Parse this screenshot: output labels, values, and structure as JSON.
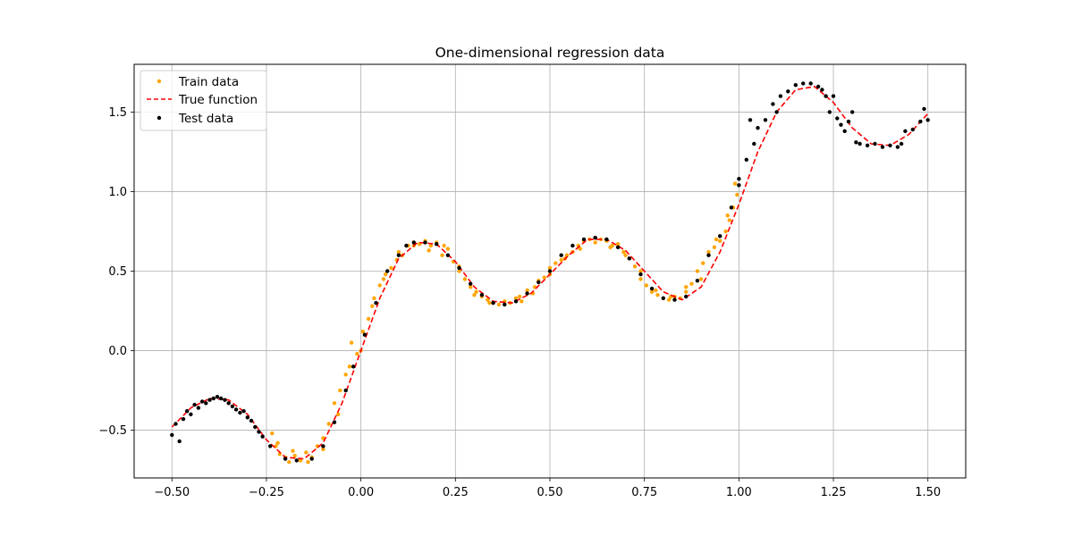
{
  "chart_data": {
    "type": "scatter",
    "title": "One-dimensional regression data",
    "xlabel": "",
    "ylabel": "",
    "xlim": [
      -0.6,
      1.6
    ],
    "ylim": [
      -0.8,
      1.8
    ],
    "x_ticks": [
      -0.5,
      -0.25,
      0.0,
      0.25,
      0.5,
      0.75,
      1.0,
      1.25,
      1.5
    ],
    "x_tick_labels": [
      "−0.50",
      "−0.25",
      "0.00",
      "0.25",
      "0.50",
      "0.75",
      "1.00",
      "1.25",
      "1.50"
    ],
    "y_ticks": [
      -0.5,
      0.0,
      0.5,
      1.0,
      1.5
    ],
    "y_tick_labels": [
      "−0.5",
      "0.0",
      "0.5",
      "1.0",
      "1.5"
    ],
    "grid": true,
    "legend_position": "top-left",
    "series": [
      {
        "name": "Train data",
        "kind": "scatter",
        "color": "#ffa500",
        "points": [
          [
            -0.235,
            -0.52
          ],
          [
            -0.225,
            -0.6
          ],
          [
            -0.215,
            -0.65
          ],
          [
            -0.2,
            -0.67
          ],
          [
            -0.19,
            -0.7
          ],
          [
            -0.175,
            -0.66
          ],
          [
            -0.16,
            -0.69
          ],
          [
            -0.145,
            -0.64
          ],
          [
            -0.13,
            -0.67
          ],
          [
            -0.115,
            -0.6
          ],
          [
            -0.1,
            -0.55
          ],
          [
            -0.085,
            -0.46
          ],
          [
            -0.07,
            -0.33
          ],
          [
            -0.055,
            -0.25
          ],
          [
            -0.04,
            -0.15
          ],
          [
            -0.025,
            0.05
          ],
          [
            -0.01,
            -0.02
          ],
          [
            0.005,
            0.12
          ],
          [
            0.02,
            0.2
          ],
          [
            0.035,
            0.33
          ],
          [
            0.05,
            0.41
          ],
          [
            0.065,
            0.48
          ],
          [
            0.08,
            0.52
          ],
          [
            0.095,
            0.57
          ],
          [
            0.11,
            0.6
          ],
          [
            0.125,
            0.66
          ],
          [
            0.14,
            0.68
          ],
          [
            0.155,
            0.67
          ],
          [
            0.17,
            0.69
          ],
          [
            0.185,
            0.66
          ],
          [
            0.2,
            0.68
          ],
          [
            0.215,
            0.6
          ],
          [
            0.23,
            0.64
          ],
          [
            0.245,
            0.56
          ],
          [
            0.26,
            0.53
          ],
          [
            0.275,
            0.45
          ],
          [
            0.29,
            0.4
          ],
          [
            0.305,
            0.37
          ],
          [
            0.32,
            0.34
          ],
          [
            0.335,
            0.32
          ],
          [
            0.35,
            0.3
          ],
          [
            0.365,
            0.29
          ],
          [
            0.38,
            0.31
          ],
          [
            0.395,
            0.3
          ],
          [
            0.41,
            0.33
          ],
          [
            0.425,
            0.31
          ],
          [
            0.44,
            0.38
          ],
          [
            0.455,
            0.36
          ],
          [
            0.47,
            0.44
          ],
          [
            0.485,
            0.46
          ],
          [
            0.5,
            0.48
          ],
          [
            0.515,
            0.55
          ],
          [
            0.53,
            0.57
          ],
          [
            0.545,
            0.6
          ],
          [
            0.56,
            0.62
          ],
          [
            0.575,
            0.66
          ],
          [
            0.59,
            0.69
          ],
          [
            0.605,
            0.7
          ],
          [
            0.62,
            0.71
          ],
          [
            0.635,
            0.7
          ],
          [
            0.65,
            0.69
          ],
          [
            0.665,
            0.66
          ],
          [
            0.68,
            0.67
          ],
          [
            0.695,
            0.62
          ],
          [
            0.71,
            0.58
          ],
          [
            0.725,
            0.53
          ],
          [
            0.74,
            0.45
          ],
          [
            0.755,
            0.41
          ],
          [
            0.77,
            0.37
          ],
          [
            0.785,
            0.35
          ],
          [
            0.8,
            0.33
          ],
          [
            0.815,
            0.32
          ],
          [
            0.83,
            0.34
          ],
          [
            0.845,
            0.33
          ],
          [
            0.86,
            0.37
          ],
          [
            0.875,
            0.42
          ],
          [
            0.89,
            0.5
          ],
          [
            0.905,
            0.55
          ],
          [
            0.92,
            0.62
          ],
          [
            0.935,
            0.65
          ],
          [
            0.95,
            0.69
          ],
          [
            0.965,
            0.75
          ],
          [
            0.975,
            0.82
          ],
          [
            0.985,
            0.9
          ],
          [
            0.995,
            0.98
          ],
          [
            -0.22,
            -0.58
          ],
          [
            -0.18,
            -0.63
          ],
          [
            -0.14,
            -0.7
          ],
          [
            -0.1,
            -0.62
          ],
          [
            -0.06,
            -0.4
          ],
          [
            -0.03,
            -0.1
          ],
          [
            0.0,
            0.0
          ],
          [
            0.03,
            0.28
          ],
          [
            0.06,
            0.45
          ],
          [
            0.1,
            0.62
          ],
          [
            0.14,
            0.66
          ],
          [
            0.18,
            0.63
          ],
          [
            0.22,
            0.66
          ],
          [
            0.26,
            0.5
          ],
          [
            0.3,
            0.35
          ],
          [
            0.34,
            0.3
          ],
          [
            0.38,
            0.29
          ],
          [
            0.42,
            0.34
          ],
          [
            0.46,
            0.4
          ],
          [
            0.5,
            0.52
          ],
          [
            0.54,
            0.58
          ],
          [
            0.58,
            0.64
          ],
          [
            0.62,
            0.68
          ],
          [
            0.66,
            0.65
          ],
          [
            0.7,
            0.6
          ],
          [
            0.74,
            0.5
          ],
          [
            0.78,
            0.38
          ],
          [
            0.82,
            0.34
          ],
          [
            0.86,
            0.4
          ],
          [
            0.9,
            0.45
          ],
          [
            0.94,
            0.7
          ],
          [
            0.97,
            0.85
          ],
          [
            0.99,
            1.05
          ]
        ]
      },
      {
        "name": "True function",
        "kind": "line",
        "color": "#ff0000",
        "points": [
          [
            -0.5,
            -0.48
          ],
          [
            -0.45,
            -0.36
          ],
          [
            -0.4,
            -0.3
          ],
          [
            -0.35,
            -0.31
          ],
          [
            -0.3,
            -0.4
          ],
          [
            -0.25,
            -0.56
          ],
          [
            -0.2,
            -0.67
          ],
          [
            -0.15,
            -0.68
          ],
          [
            -0.1,
            -0.58
          ],
          [
            -0.05,
            -0.33
          ],
          [
            0.0,
            0.0
          ],
          [
            0.05,
            0.33
          ],
          [
            0.1,
            0.58
          ],
          [
            0.15,
            0.68
          ],
          [
            0.2,
            0.67
          ],
          [
            0.25,
            0.56
          ],
          [
            0.3,
            0.4
          ],
          [
            0.35,
            0.31
          ],
          [
            0.4,
            0.3
          ],
          [
            0.45,
            0.36
          ],
          [
            0.5,
            0.48
          ],
          [
            0.55,
            0.6
          ],
          [
            0.6,
            0.7
          ],
          [
            0.65,
            0.7
          ],
          [
            0.7,
            0.63
          ],
          [
            0.75,
            0.5
          ],
          [
            0.8,
            0.37
          ],
          [
            0.85,
            0.32
          ],
          [
            0.9,
            0.4
          ],
          [
            0.95,
            0.62
          ],
          [
            1.0,
            0.92
          ],
          [
            1.05,
            1.25
          ],
          [
            1.1,
            1.5
          ],
          [
            1.15,
            1.64
          ],
          [
            1.2,
            1.66
          ],
          [
            1.25,
            1.56
          ],
          [
            1.3,
            1.4
          ],
          [
            1.35,
            1.3
          ],
          [
            1.4,
            1.29
          ],
          [
            1.45,
            1.36
          ],
          [
            1.5,
            1.49
          ]
        ]
      },
      {
        "name": "Test data",
        "kind": "scatter",
        "color": "#000000",
        "points": [
          [
            -0.5,
            -0.53
          ],
          [
            -0.49,
            -0.46
          ],
          [
            -0.48,
            -0.57
          ],
          [
            -0.47,
            -0.43
          ],
          [
            -0.46,
            -0.38
          ],
          [
            -0.45,
            -0.4
          ],
          [
            -0.44,
            -0.34
          ],
          [
            -0.43,
            -0.36
          ],
          [
            -0.42,
            -0.32
          ],
          [
            -0.41,
            -0.33
          ],
          [
            -0.4,
            -0.31
          ],
          [
            -0.39,
            -0.3
          ],
          [
            -0.38,
            -0.29
          ],
          [
            -0.37,
            -0.3
          ],
          [
            -0.36,
            -0.31
          ],
          [
            -0.35,
            -0.33
          ],
          [
            -0.34,
            -0.35
          ],
          [
            -0.33,
            -0.37
          ],
          [
            -0.32,
            -0.39
          ],
          [
            -0.31,
            -0.38
          ],
          [
            -0.3,
            -0.42
          ],
          [
            -0.29,
            -0.44
          ],
          [
            -0.28,
            -0.48
          ],
          [
            -0.27,
            -0.51
          ],
          [
            -0.26,
            -0.54
          ],
          [
            -0.24,
            -0.6
          ],
          [
            -0.2,
            -0.68
          ],
          [
            -0.17,
            -0.69
          ],
          [
            -0.13,
            -0.68
          ],
          [
            -0.1,
            -0.6
          ],
          [
            -0.07,
            -0.45
          ],
          [
            -0.04,
            -0.25
          ],
          [
            -0.02,
            -0.1
          ],
          [
            0.01,
            0.1
          ],
          [
            0.04,
            0.3
          ],
          [
            0.07,
            0.5
          ],
          [
            0.1,
            0.6
          ],
          [
            0.12,
            0.66
          ],
          [
            0.14,
            0.68
          ],
          [
            0.17,
            0.68
          ],
          [
            0.2,
            0.67
          ],
          [
            0.23,
            0.6
          ],
          [
            0.26,
            0.52
          ],
          [
            0.29,
            0.42
          ],
          [
            0.32,
            0.35
          ],
          [
            0.35,
            0.3
          ],
          [
            0.38,
            0.29
          ],
          [
            0.41,
            0.31
          ],
          [
            0.44,
            0.36
          ],
          [
            0.47,
            0.43
          ],
          [
            0.5,
            0.5
          ],
          [
            0.53,
            0.6
          ],
          [
            0.56,
            0.66
          ],
          [
            0.59,
            0.7
          ],
          [
            0.62,
            0.71
          ],
          [
            0.65,
            0.7
          ],
          [
            0.68,
            0.65
          ],
          [
            0.71,
            0.58
          ],
          [
            0.74,
            0.48
          ],
          [
            0.77,
            0.39
          ],
          [
            0.8,
            0.33
          ],
          [
            0.83,
            0.32
          ],
          [
            0.86,
            0.34
          ],
          [
            0.89,
            0.44
          ],
          [
            0.92,
            0.6
          ],
          [
            0.95,
            0.72
          ],
          [
            0.98,
            0.9
          ],
          [
            1.0,
            1.04
          ],
          [
            1.02,
            1.2
          ],
          [
            1.04,
            1.3
          ],
          [
            1.05,
            1.4
          ],
          [
            1.07,
            1.45
          ],
          [
            1.09,
            1.55
          ],
          [
            1.1,
            1.5
          ],
          [
            1.11,
            1.6
          ],
          [
            1.13,
            1.63
          ],
          [
            1.15,
            1.67
          ],
          [
            1.17,
            1.68
          ],
          [
            1.19,
            1.68
          ],
          [
            1.21,
            1.66
          ],
          [
            1.22,
            1.64
          ],
          [
            1.24,
            1.5
          ],
          [
            1.25,
            1.6
          ],
          [
            1.26,
            1.46
          ],
          [
            1.27,
            1.42
          ],
          [
            1.28,
            1.38
          ],
          [
            1.29,
            1.44
          ],
          [
            1.31,
            1.31
          ],
          [
            1.32,
            1.3
          ],
          [
            1.34,
            1.29
          ],
          [
            1.36,
            1.3
          ],
          [
            1.38,
            1.28
          ],
          [
            1.4,
            1.29
          ],
          [
            1.42,
            1.28
          ],
          [
            1.43,
            1.3
          ],
          [
            1.44,
            1.38
          ],
          [
            1.46,
            1.39
          ],
          [
            1.48,
            1.44
          ],
          [
            1.49,
            1.52
          ],
          [
            1.5,
            1.45
          ],
          [
            1.3,
            1.5
          ],
          [
            1.23,
            1.6
          ],
          [
            1.0,
            1.08
          ],
          [
            1.03,
            1.45
          ]
        ]
      }
    ]
  }
}
